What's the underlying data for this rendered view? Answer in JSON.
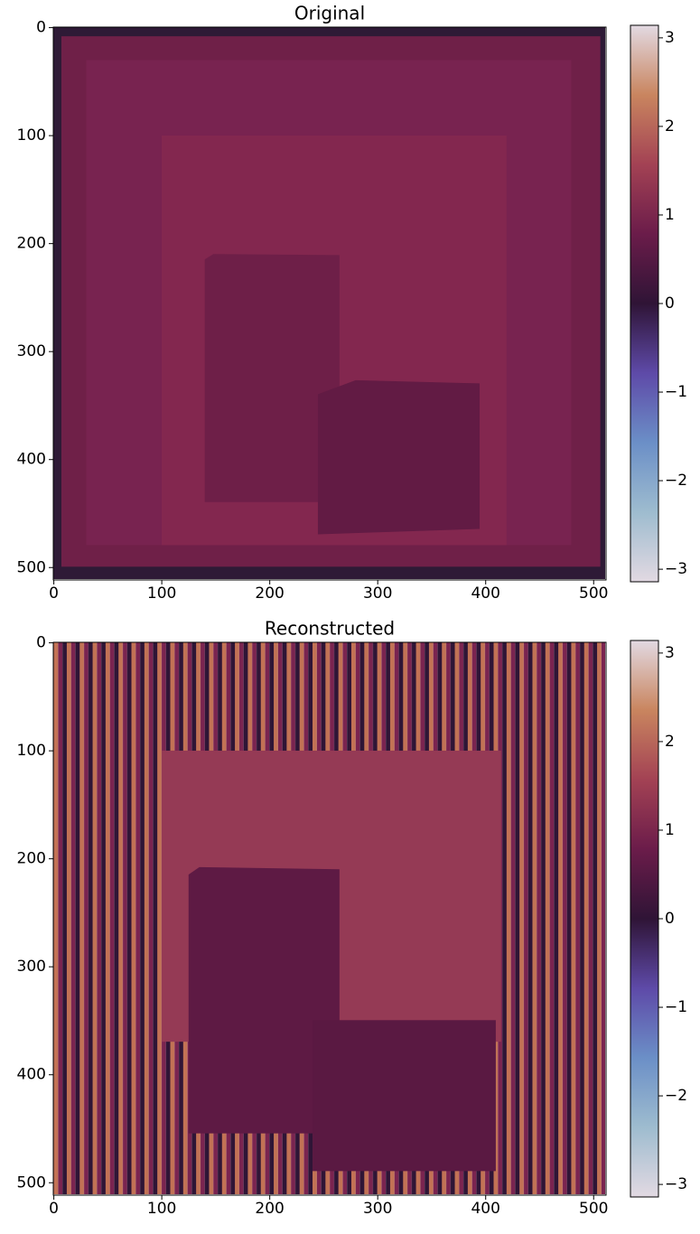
{
  "chart_data": [
    {
      "type": "image",
      "title": "Original",
      "xlim": [
        -0.5,
        511.5
      ],
      "ylim": [
        511.5,
        -0.5
      ],
      "xticks": [
        0,
        100,
        200,
        300,
        400,
        500
      ],
      "yticks": [
        0,
        100,
        200,
        300,
        400,
        500
      ],
      "colorbar": {
        "colormap": "twilight_shifted",
        "clim": [
          -3.14159,
          3.14159
        ],
        "ticks": [
          3,
          2,
          1,
          0,
          {
            "value": -1,
            "label": "−1"
          },
          {
            "value": -2,
            "label": "−2"
          },
          {
            "value": -3,
            "label": "−3"
          }
        ]
      }
    },
    {
      "type": "image",
      "title": "Reconstructed",
      "xlim": [
        -0.5,
        511.5
      ],
      "ylim": [
        511.5,
        -0.5
      ],
      "xticks": [
        0,
        100,
        200,
        300,
        400,
        500
      ],
      "yticks": [
        0,
        100,
        200,
        300,
        400,
        500
      ],
      "colorbar": {
        "colormap": "twilight_shifted",
        "clim": [
          -3.14159,
          3.14159
        ],
        "ticks": [
          3,
          2,
          1,
          0,
          {
            "value": -1,
            "label": "−1"
          },
          {
            "value": -2,
            "label": "−2"
          },
          {
            "value": -3,
            "label": "−3"
          }
        ]
      }
    }
  ]
}
